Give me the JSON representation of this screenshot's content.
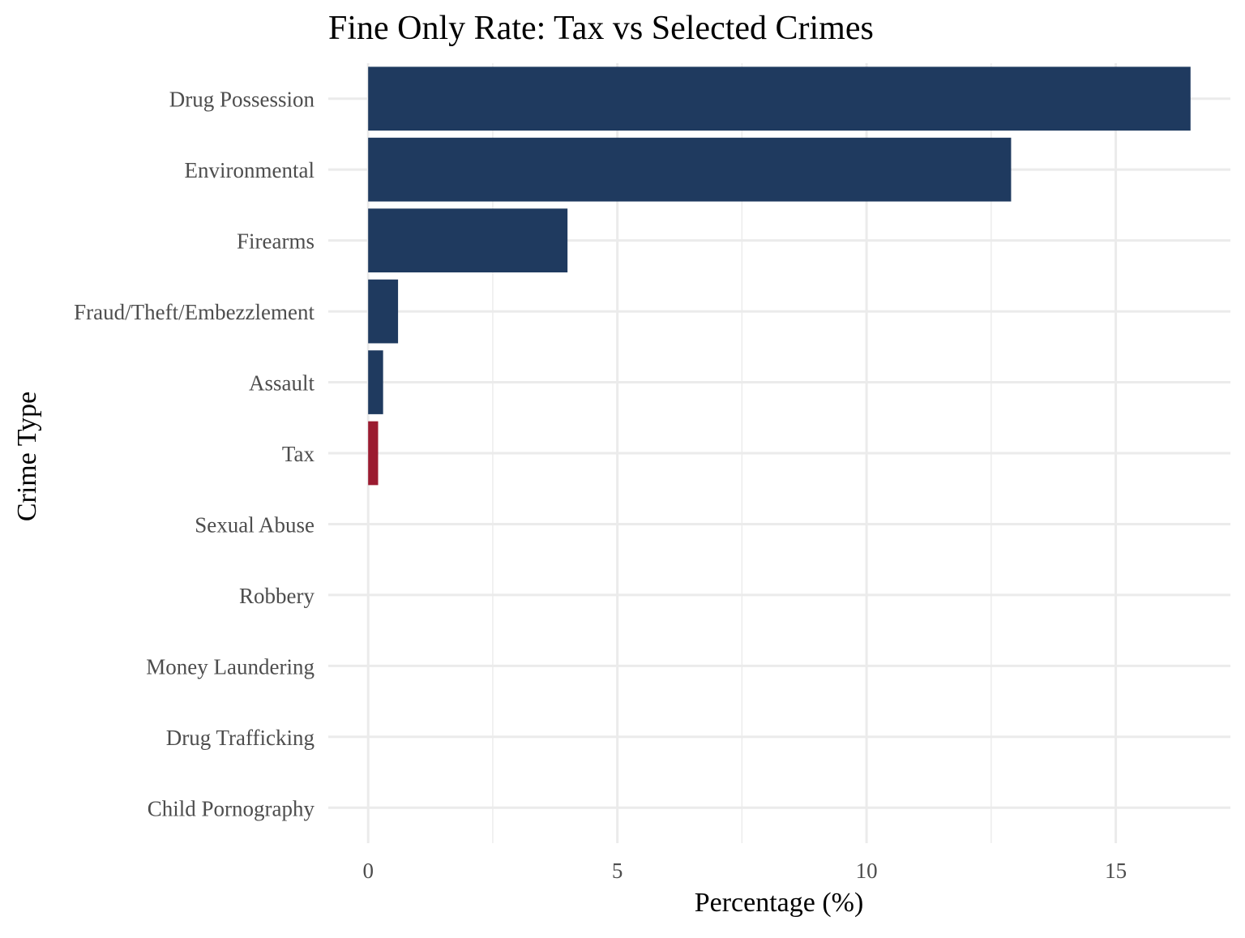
{
  "chart_data": {
    "type": "bar",
    "orientation": "horizontal",
    "title": "Fine Only Rate: Tax vs Selected Crimes",
    "xlabel": "Percentage (%)",
    "ylabel": "Crime Type",
    "categories": [
      "Drug Possession",
      "Environmental",
      "Firearms",
      "Fraud/Theft/Embezzlement",
      "Assault",
      "Tax",
      "Sexual Abuse",
      "Robbery",
      "Money Laundering",
      "Drug Trafficking",
      "Child Pornography"
    ],
    "values": [
      16.5,
      12.9,
      4.0,
      0.6,
      0.3,
      0.2,
      0,
      0,
      0,
      0,
      0
    ],
    "highlight": [
      "Tax"
    ],
    "xlim": [
      -0.8,
      17.3
    ],
    "xticks": [
      0,
      5,
      10,
      15
    ],
    "xtick_labels": [
      "0",
      "5",
      "10",
      "15"
    ],
    "grid": true,
    "legend": "none",
    "colors": {
      "default": "#1f3a5f",
      "highlight": "#9b1b30",
      "grid": "#ebebeb",
      "tick_text": "#4d4d4d",
      "title_text": "#000000"
    }
  }
}
